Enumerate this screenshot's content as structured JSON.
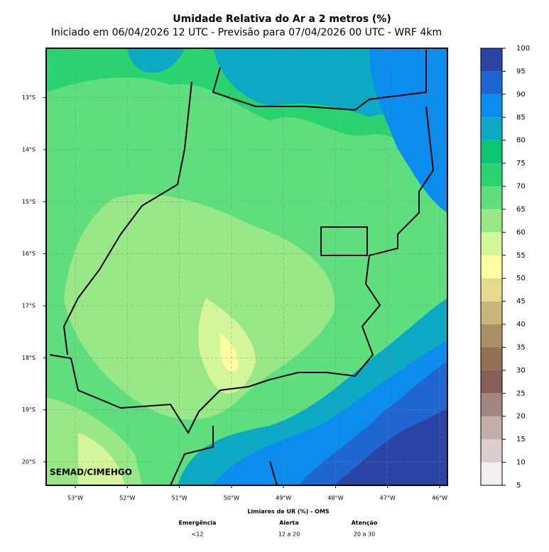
{
  "title": "Umidade Relativa do Ar a 2 metros (%)",
  "subtitle": "Iniciado em 06/04/2026 12 UTC - Previsão para 07/04/2026 00 UTC - WRF 4km",
  "map": {
    "lonlim": [
      -53.56,
      -45.85
    ],
    "latlim": [
      -20.45,
      -12.05
    ],
    "lon_ticks": [
      {
        "value": -53,
        "label": "53°W"
      },
      {
        "value": -52,
        "label": "52°W"
      },
      {
        "value": -51,
        "label": "51°W"
      },
      {
        "value": -50,
        "label": "50°W"
      },
      {
        "value": -49,
        "label": "49°W"
      },
      {
        "value": -48,
        "label": "48°W"
      },
      {
        "value": -47,
        "label": "47°W"
      },
      {
        "value": -46,
        "label": "46°W"
      }
    ],
    "lat_ticks": [
      {
        "value": -13,
        "label": "13°S"
      },
      {
        "value": -14,
        "label": "14°S"
      },
      {
        "value": -15,
        "label": "15°S"
      },
      {
        "value": -16,
        "label": "16°S"
      },
      {
        "value": -17,
        "label": "17°S"
      },
      {
        "value": -18,
        "label": "18°S"
      },
      {
        "value": -19,
        "label": "19°S"
      },
      {
        "value": -20,
        "label": "20°S"
      }
    ],
    "grid": true,
    "credit": "SEMAD/CIMEHGO"
  },
  "colorbar": {
    "levels": [
      5,
      10,
      15,
      20,
      25,
      30,
      35,
      40,
      45,
      50,
      55,
      60,
      65,
      70,
      75,
      80,
      85,
      90,
      95,
      100
    ],
    "colors": [
      "#f2eeee",
      "#dacdcb",
      "#c3afaa",
      "#a28780",
      "#875f56",
      "#936f56",
      "#ab9066",
      "#c8b67a",
      "#e6da8f",
      "#fdfea0",
      "#d4f59a",
      "#98e887",
      "#5ede7c",
      "#2ad36f",
      "#0ac672",
      "#0ca9c5",
      "#0b8df0",
      "#1f66d0",
      "#2b45a6"
    ]
  },
  "legend": {
    "title": "Limiares de UR (%) - OMS",
    "items": [
      {
        "name": "Emergência",
        "range": "<12"
      },
      {
        "name": "Alerta",
        "range": "12 a 20"
      },
      {
        "name": "Atenção",
        "range": "20 a 30"
      }
    ]
  }
}
